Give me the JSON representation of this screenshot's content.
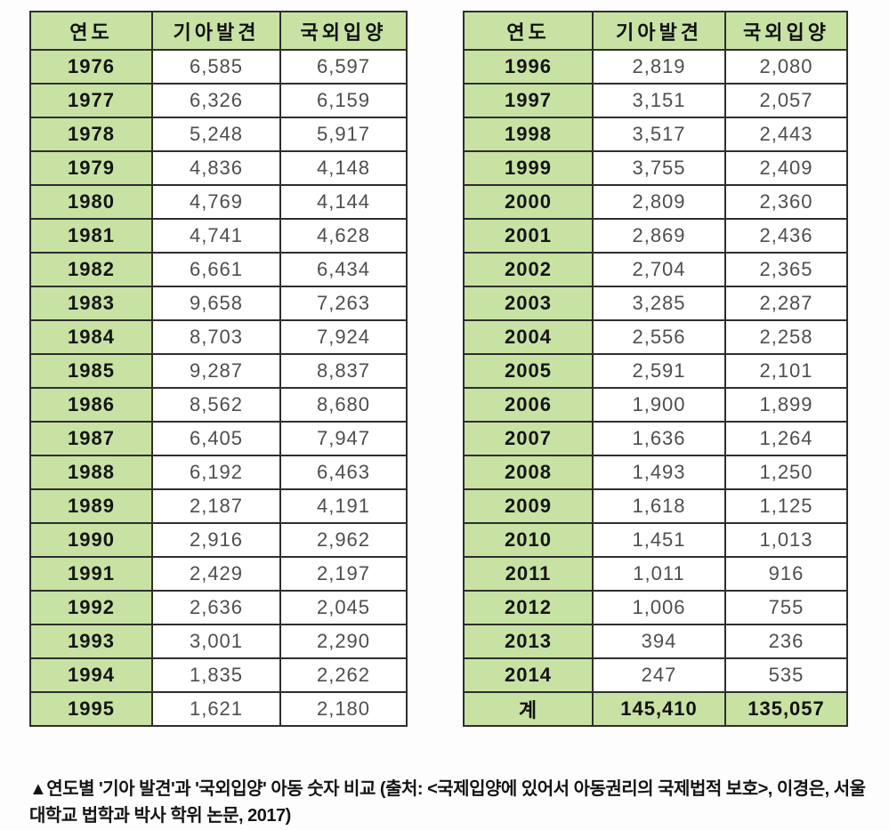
{
  "colors": {
    "green": "#c8e2a4",
    "border": "#2e2e2e",
    "value_text": "#4e4e4e",
    "label_text": "#121212"
  },
  "caption": "▲연도별 '기아 발견'과 '국외입양' 아동 숫자 비교 (출처: <국제입양에 있어서 아동권리의 국제법적 보호>, 이경은, 서울대학교 법학과 박사 학위 논문, 2017)",
  "tables": [
    {
      "headers": [
        "연도",
        "기아발견",
        "국외입양"
      ],
      "rows": [
        [
          "1976",
          "6,585",
          "6,597"
        ],
        [
          "1977",
          "6,326",
          "6,159"
        ],
        [
          "1978",
          "5,248",
          "5,917"
        ],
        [
          "1979",
          "4,836",
          "4,148"
        ],
        [
          "1980",
          "4,769",
          "4,144"
        ],
        [
          "1981",
          "4,741",
          "4,628"
        ],
        [
          "1982",
          "6,661",
          "6,434"
        ],
        [
          "1983",
          "9,658",
          "7,263"
        ],
        [
          "1984",
          "8,703",
          "7,924"
        ],
        [
          "1985",
          "9,287",
          "8,837"
        ],
        [
          "1986",
          "8,562",
          "8,680"
        ],
        [
          "1987",
          "6,405",
          "7,947"
        ],
        [
          "1988",
          "6,192",
          "6,463"
        ],
        [
          "1989",
          "2,187",
          "4,191"
        ],
        [
          "1990",
          "2,916",
          "2,962"
        ],
        [
          "1991",
          "2,429",
          "2,197"
        ],
        [
          "1992",
          "2,636",
          "2,045"
        ],
        [
          "1993",
          "3,001",
          "2,290"
        ],
        [
          "1994",
          "1,835",
          "2,262"
        ],
        [
          "1995",
          "1,621",
          "2,180"
        ]
      ],
      "total_row": null
    },
    {
      "headers": [
        "연도",
        "기아발견",
        "국외입양"
      ],
      "rows": [
        [
          "1996",
          "2,819",
          "2,080"
        ],
        [
          "1997",
          "3,151",
          "2,057"
        ],
        [
          "1998",
          "3,517",
          "2,443"
        ],
        [
          "1999",
          "3,755",
          "2,409"
        ],
        [
          "2000",
          "2,809",
          "2,360"
        ],
        [
          "2001",
          "2,869",
          "2,436"
        ],
        [
          "2002",
          "2,704",
          "2,365"
        ],
        [
          "2003",
          "3,285",
          "2,287"
        ],
        [
          "2004",
          "2,556",
          "2,258"
        ],
        [
          "2005",
          "2,591",
          "2,101"
        ],
        [
          "2006",
          "1,900",
          "1,899"
        ],
        [
          "2007",
          "1,636",
          "1,264"
        ],
        [
          "2008",
          "1,493",
          "1,250"
        ],
        [
          "2009",
          "1,618",
          "1,125"
        ],
        [
          "2010",
          "1,451",
          "1,013"
        ],
        [
          "2011",
          "1,011",
          "916"
        ],
        [
          "2012",
          "1,006",
          "755"
        ],
        [
          "2013",
          "394",
          "236"
        ],
        [
          "2014",
          "247",
          "535"
        ]
      ],
      "total_row": [
        "계",
        "145,410",
        "135,057"
      ]
    }
  ],
  "chart_data": {
    "type": "table",
    "title": "연도별 '기아 발견'과 '국외입양' 아동 숫자 비교",
    "columns": [
      "연도",
      "기아발견",
      "국외입양"
    ],
    "rows": [
      [
        1976,
        6585,
        6597
      ],
      [
        1977,
        6326,
        6159
      ],
      [
        1978,
        5248,
        5917
      ],
      [
        1979,
        4836,
        4148
      ],
      [
        1980,
        4769,
        4144
      ],
      [
        1981,
        4741,
        4628
      ],
      [
        1982,
        6661,
        6434
      ],
      [
        1983,
        9658,
        7263
      ],
      [
        1984,
        8703,
        7924
      ],
      [
        1985,
        9287,
        8837
      ],
      [
        1986,
        8562,
        8680
      ],
      [
        1987,
        6405,
        7947
      ],
      [
        1988,
        6192,
        6463
      ],
      [
        1989,
        2187,
        4191
      ],
      [
        1990,
        2916,
        2962
      ],
      [
        1991,
        2429,
        2197
      ],
      [
        1992,
        2636,
        2045
      ],
      [
        1993,
        3001,
        2290
      ],
      [
        1994,
        1835,
        2262
      ],
      [
        1995,
        1621,
        2180
      ],
      [
        1996,
        2819,
        2080
      ],
      [
        1997,
        3151,
        2057
      ],
      [
        1998,
        3517,
        2443
      ],
      [
        1999,
        3755,
        2409
      ],
      [
        2000,
        2809,
        2360
      ],
      [
        2001,
        2869,
        2436
      ],
      [
        2002,
        2704,
        2365
      ],
      [
        2003,
        3285,
        2287
      ],
      [
        2004,
        2556,
        2258
      ],
      [
        2005,
        2591,
        2101
      ],
      [
        2006,
        1900,
        1899
      ],
      [
        2007,
        1636,
        1264
      ],
      [
        2008,
        1493,
        1250
      ],
      [
        2009,
        1618,
        1125
      ],
      [
        2010,
        1451,
        1013
      ],
      [
        2011,
        1011,
        916
      ],
      [
        2012,
        1006,
        755
      ],
      [
        2013,
        394,
        236
      ],
      [
        2014,
        247,
        535
      ]
    ],
    "total_row": {
      "label": "계",
      "values": [
        145410,
        135057
      ]
    },
    "layout": "two side-by-side tables: 1976-1995 on the left, 1996-2014 plus total on the right; year column and header shaded green"
  }
}
